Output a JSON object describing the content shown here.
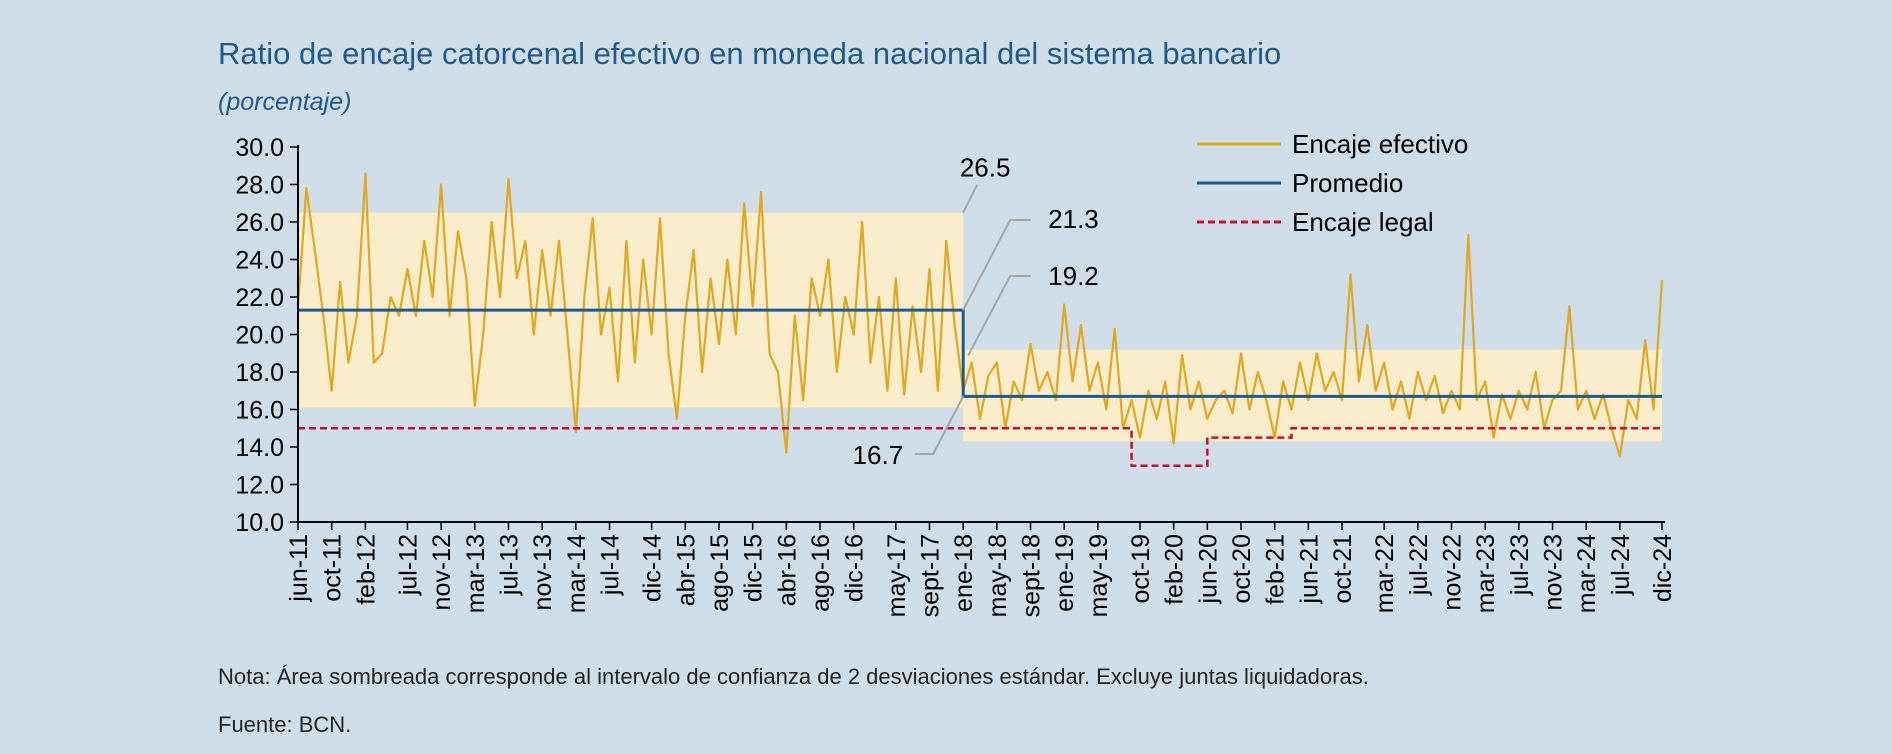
{
  "title": "Ratio de encaje catorcenal efectivo en moneda nacional del sistema bancario",
  "subtitle": "(porcentaje)",
  "note": "Nota: Área sombreada corresponde al intervalo de confianza de 2 desviaciones estándar. Excluye juntas liquidadoras.",
  "source": "Fuente: BCN.",
  "colors": {
    "background": "#cfdde9",
    "band": "#fbeccc",
    "effective": "#e0a81e",
    "average": "#1f5a8c",
    "legal": "#c8102e"
  },
  "chart_data": {
    "type": "line",
    "x_start": "jun-11",
    "x_end": "dic-24",
    "ylim": [
      10.0,
      30.0
    ],
    "yticks": [
      "10.0",
      "12.0",
      "14.0",
      "16.0",
      "18.0",
      "20.0",
      "22.0",
      "24.0",
      "26.0",
      "28.0",
      "30.0"
    ],
    "xticks": [
      "jun-11",
      "oct-11",
      "feb-12",
      "jul-12",
      "nov-12",
      "mar-13",
      "jul-13",
      "nov-13",
      "mar-14",
      "jul-14",
      "dic-14",
      "abr-15",
      "ago-15",
      "dic-15",
      "abr-16",
      "ago-16",
      "dic-16",
      "may-17",
      "sept-17",
      "ene-18",
      "may-18",
      "sept-18",
      "ene-19",
      "may-19",
      "oct-19",
      "feb-20",
      "jun-20",
      "oct-20",
      "feb-21",
      "jun-21",
      "oct-21",
      "mar-22",
      "jul-22",
      "nov-22",
      "mar-23",
      "jul-23",
      "nov-23",
      "mar-24",
      "jul-24",
      "dic-24"
    ],
    "legend_position": "top-right",
    "series": [
      {
        "name": "Encaje efectivo",
        "key": "effective",
        "points": [
          [
            "jun-11",
            21.5
          ],
          [
            "jul-11",
            27.8
          ],
          [
            "ago-11",
            24.5
          ],
          [
            "sept-11",
            21.0
          ],
          [
            "oct-11",
            17.0
          ],
          [
            "nov-11",
            22.8
          ],
          [
            "dic-11",
            18.5
          ],
          [
            "ene-12",
            21.0
          ],
          [
            "feb-12",
            28.6
          ],
          [
            "mar-12",
            18.5
          ],
          [
            "abr-12",
            19.0
          ],
          [
            "may-12",
            22.0
          ],
          [
            "jun-12",
            21.0
          ],
          [
            "jul-12",
            23.5
          ],
          [
            "ago-12",
            21.0
          ],
          [
            "sept-12",
            25.0
          ],
          [
            "oct-12",
            22.0
          ],
          [
            "nov-12",
            28.0
          ],
          [
            "dic-12",
            21.0
          ],
          [
            "ene-13",
            25.5
          ],
          [
            "feb-13",
            23.0
          ],
          [
            "mar-13",
            16.2
          ],
          [
            "abr-13",
            20.0
          ],
          [
            "may-13",
            26.0
          ],
          [
            "jun-13",
            22.0
          ],
          [
            "jul-13",
            28.3
          ],
          [
            "ago-13",
            23.0
          ],
          [
            "sept-13",
            25.0
          ],
          [
            "oct-13",
            20.0
          ],
          [
            "nov-13",
            24.5
          ],
          [
            "dic-13",
            21.0
          ],
          [
            "ene-14",
            25.0
          ],
          [
            "feb-14",
            20.0
          ],
          [
            "mar-14",
            14.8
          ],
          [
            "abr-14",
            22.0
          ],
          [
            "may-14",
            26.2
          ],
          [
            "jun-14",
            20.0
          ],
          [
            "jul-14",
            22.5
          ],
          [
            "ago-14",
            17.5
          ],
          [
            "sept-14",
            25.0
          ],
          [
            "oct-14",
            18.5
          ],
          [
            "nov-14",
            24.0
          ],
          [
            "dic-14",
            20.0
          ],
          [
            "ene-15",
            26.2
          ],
          [
            "feb-15",
            19.0
          ],
          [
            "mar-15",
            15.5
          ],
          [
            "abr-15",
            21.0
          ],
          [
            "may-15",
            24.5
          ],
          [
            "jun-15",
            18.0
          ],
          [
            "jul-15",
            23.0
          ],
          [
            "ago-15",
            19.5
          ],
          [
            "sept-15",
            24.0
          ],
          [
            "oct-15",
            20.0
          ],
          [
            "nov-15",
            27.0
          ],
          [
            "dic-15",
            21.5
          ],
          [
            "ene-16",
            27.6
          ],
          [
            "feb-16",
            19.0
          ],
          [
            "mar-16",
            18.0
          ],
          [
            "abr-16",
            13.7
          ],
          [
            "may-16",
            21.0
          ],
          [
            "jun-16",
            16.5
          ],
          [
            "jul-16",
            23.0
          ],
          [
            "ago-16",
            21.0
          ],
          [
            "sept-16",
            24.0
          ],
          [
            "oct-16",
            18.0
          ],
          [
            "nov-16",
            22.0
          ],
          [
            "dic-16",
            20.0
          ],
          [
            "ene-17",
            26.0
          ],
          [
            "feb-17",
            18.5
          ],
          [
            "mar-17",
            22.0
          ],
          [
            "abr-17",
            17.0
          ],
          [
            "may-17",
            23.0
          ],
          [
            "jun-17",
            16.8
          ],
          [
            "jul-17",
            21.5
          ],
          [
            "ago-17",
            18.0
          ],
          [
            "sept-17",
            23.5
          ],
          [
            "oct-17",
            17.0
          ],
          [
            "nov-17",
            25.0
          ],
          [
            "dic-17",
            20.5
          ],
          [
            "ene-18",
            17.0
          ],
          [
            "feb-18",
            18.5
          ],
          [
            "mar-18",
            15.5
          ],
          [
            "abr-18",
            17.8
          ],
          [
            "may-18",
            18.5
          ],
          [
            "jun-18",
            15.0
          ],
          [
            "jul-18",
            17.5
          ],
          [
            "ago-18",
            16.5
          ],
          [
            "sept-18",
            19.5
          ],
          [
            "oct-18",
            17.0
          ],
          [
            "nov-18",
            18.0
          ],
          [
            "dic-18",
            16.5
          ],
          [
            "ene-19",
            21.6
          ],
          [
            "feb-19",
            17.5
          ],
          [
            "mar-19",
            20.5
          ],
          [
            "abr-19",
            17.0
          ],
          [
            "may-19",
            18.5
          ],
          [
            "jun-19",
            16.0
          ],
          [
            "jul-19",
            20.3
          ],
          [
            "ago-19",
            15.0
          ],
          [
            "sept-19",
            16.5
          ],
          [
            "oct-19",
            14.5
          ],
          [
            "nov-19",
            17.0
          ],
          [
            "dic-19",
            15.5
          ],
          [
            "ene-20",
            17.5
          ],
          [
            "feb-20",
            14.2
          ],
          [
            "mar-20",
            18.9
          ],
          [
            "abr-20",
            16.0
          ],
          [
            "may-20",
            17.5
          ],
          [
            "jun-20",
            15.5
          ],
          [
            "jul-20",
            16.5
          ],
          [
            "ago-20",
            17.0
          ],
          [
            "sept-20",
            15.8
          ],
          [
            "oct-20",
            19.0
          ],
          [
            "nov-20",
            16.0
          ],
          [
            "dic-20",
            18.0
          ],
          [
            "ene-21",
            16.5
          ],
          [
            "feb-21",
            14.5
          ],
          [
            "mar-21",
            17.5
          ],
          [
            "abr-21",
            16.0
          ],
          [
            "may-21",
            18.5
          ],
          [
            "jun-21",
            16.5
          ],
          [
            "jul-21",
            19.0
          ],
          [
            "ago-21",
            17.0
          ],
          [
            "sept-21",
            18.0
          ],
          [
            "oct-21",
            16.5
          ],
          [
            "nov-21",
            23.2
          ],
          [
            "dic-21",
            17.5
          ],
          [
            "ene-22",
            20.5
          ],
          [
            "feb-22",
            17.0
          ],
          [
            "mar-22",
            18.5
          ],
          [
            "abr-22",
            16.0
          ],
          [
            "may-22",
            17.5
          ],
          [
            "jun-22",
            15.5
          ],
          [
            "jul-22",
            18.0
          ],
          [
            "ago-22",
            16.5
          ],
          [
            "sept-22",
            17.8
          ],
          [
            "oct-22",
            15.8
          ],
          [
            "nov-22",
            17.0
          ],
          [
            "dic-22",
            16.0
          ],
          [
            "ene-23",
            25.3
          ],
          [
            "feb-23",
            16.5
          ],
          [
            "mar-23",
            17.5
          ],
          [
            "abr-23",
            14.5
          ],
          [
            "may-23",
            16.8
          ],
          [
            "jun-23",
            15.5
          ],
          [
            "jul-23",
            17.0
          ],
          [
            "ago-23",
            16.0
          ],
          [
            "sept-23",
            18.0
          ],
          [
            "oct-23",
            15.0
          ],
          [
            "nov-23",
            16.5
          ],
          [
            "dic-23",
            17.0
          ],
          [
            "ene-24",
            21.5
          ],
          [
            "feb-24",
            16.0
          ],
          [
            "mar-24",
            17.0
          ],
          [
            "abr-24",
            15.5
          ],
          [
            "may-24",
            16.8
          ],
          [
            "jun-24",
            15.0
          ],
          [
            "jul-24",
            13.5
          ],
          [
            "ago-24",
            16.5
          ],
          [
            "sept-24",
            15.5
          ],
          [
            "oct-24",
            19.7
          ],
          [
            "nov-24",
            16.0
          ],
          [
            "dic-24",
            22.9
          ]
        ]
      },
      {
        "name": "Promedio",
        "key": "average",
        "points": [
          [
            "jun-11",
            21.3
          ],
          [
            "ene-18",
            21.3
          ],
          [
            "ene-18",
            16.7
          ],
          [
            "dic-24",
            16.7
          ]
        ]
      },
      {
        "name": "Encaje legal",
        "key": "legal",
        "points": [
          [
            "jun-11",
            15.0
          ],
          [
            "sept-19",
            15.0
          ],
          [
            "sept-19",
            13.0
          ],
          [
            "jun-20",
            13.0
          ],
          [
            "jun-20",
            14.5
          ],
          [
            "abr-21",
            14.5
          ],
          [
            "abr-21",
            15.0
          ],
          [
            "dic-24",
            15.0
          ]
        ]
      }
    ],
    "bands": [
      {
        "from": "jun-11",
        "to": "ene-18",
        "low": 16.1,
        "high": 26.5
      },
      {
        "from": "ene-18",
        "to": "dic-24",
        "low": 14.3,
        "high": 19.2
      }
    ],
    "annotations": [
      {
        "text": "26.5",
        "at": "ene-18",
        "value": 26.5
      },
      {
        "text": "21.3",
        "at": "ene-18",
        "value": 21.3
      },
      {
        "text": "19.2",
        "at": "ene-18",
        "value": 19.2
      },
      {
        "text": "16.7",
        "at": "ene-18",
        "value": 16.7
      }
    ]
  }
}
